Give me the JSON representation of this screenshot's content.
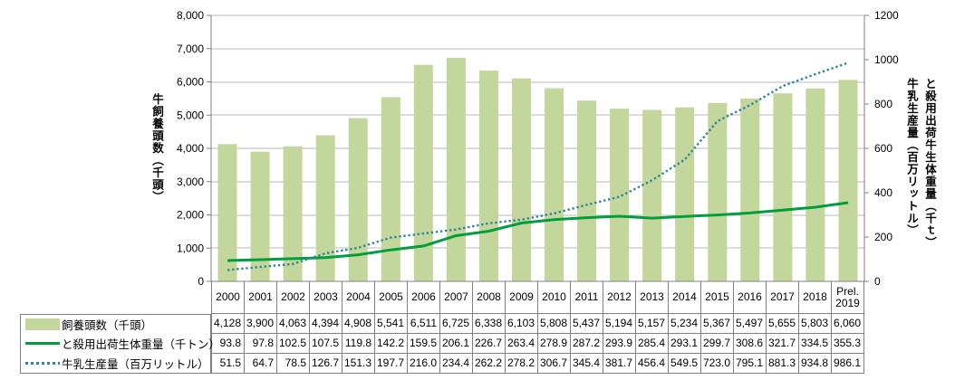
{
  "colors": {
    "bar": "#c3d69b",
    "line_green": "#009e3d",
    "line_blue": "#31849b",
    "grid": "#b9b9b9",
    "axis": "#808080",
    "table_border": "#808080",
    "text": "#000000"
  },
  "chart_data": {
    "type": "bar",
    "subtype": "bar+line combo chart with data table",
    "categories": [
      "2000",
      "2001",
      "2002",
      "2003",
      "2004",
      "2005",
      "2006",
      "2007",
      "2008",
      "2009",
      "2010",
      "2011",
      "2012",
      "2013",
      "2014",
      "2015",
      "2016",
      "2017",
      "2018",
      "Prel. 2019"
    ],
    "series": [
      {
        "name": "飼養頭数（千頭）",
        "type": "bar",
        "axis": "left",
        "color": "#c3d69b",
        "number_format": "thousands",
        "values": [
          4128,
          3900,
          4063,
          4394,
          4908,
          5541,
          6511,
          6725,
          6338,
          6103,
          5808,
          5437,
          5194,
          5157,
          5234,
          5367,
          5497,
          5655,
          5803,
          6060
        ]
      },
      {
        "name": "と殺用出荷生体重量（千トン）",
        "type": "line",
        "style": "solid",
        "axis": "right",
        "color": "#009e3d",
        "number_format": "one_decimal",
        "values": [
          93.8,
          97.8,
          102.5,
          107.5,
          119.8,
          142.2,
          159.5,
          206.1,
          226.7,
          263.4,
          278.9,
          287.2,
          293.9,
          285.4,
          293.1,
          299.7,
          308.6,
          321.7,
          334.5,
          355.3
        ]
      },
      {
        "name": "牛乳生産量（百万リットル）",
        "type": "line",
        "style": "dotted",
        "axis": "right",
        "color": "#31849b",
        "number_format": "one_decimal",
        "values": [
          51.5,
          64.7,
          78.5,
          126.7,
          151.3,
          197.7,
          216.0,
          234.4,
          262.2,
          278.2,
          306.7,
          345.4,
          381.7,
          456.4,
          549.5,
          723.0,
          795.1,
          881.3,
          934.8,
          986.1
        ]
      }
    ],
    "left_axis": {
      "title": "牛飼養頭数（千頭）",
      "min": 0,
      "max": 8000,
      "step": 1000
    },
    "right_axis": {
      "title_line1": "と殺用出荷牛生体重量（千ｔ）",
      "title_line2": "牛乳生産量（百万リットル）",
      "min": 0,
      "max": 1200,
      "step": 200
    },
    "grid": true,
    "legend_position": "bottom-left, attached to data table rows"
  }
}
